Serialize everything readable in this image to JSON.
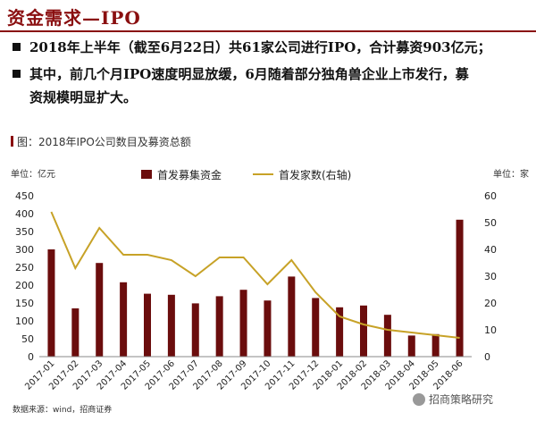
{
  "header": {
    "title": "资金需求—IPO"
  },
  "bullets": [
    "2018年上半年（截至6月22日）共61家公司进行IPO，合计募资903亿元；",
    "其中，前几个月IPO速度明显放缓，6月随着部分独角兽企业上市发行，募",
    "资规模明显扩大。"
  ],
  "chart_caption": "图：2018年IPO公司数目及募资总额",
  "source": "数据来源：wind，招商证券",
  "watermark": "招商策略研究",
  "chart_data": {
    "type": "bar+line",
    "left_unit_label": "单位：亿元",
    "right_unit_label": "单位：家",
    "categories": [
      "2017-01",
      "2017-02",
      "2017-03",
      "2017-04",
      "2017-05",
      "2017-06",
      "2017-07",
      "2017-08",
      "2017-09",
      "2017-10",
      "2017-11",
      "2017-12",
      "2018-01",
      "2018-02",
      "2018-03",
      "2018-04",
      "2018-05",
      "2018-06"
    ],
    "series": [
      {
        "name": "首发募集资金",
        "type": "bar",
        "axis": "left",
        "color": "#6b0d0d",
        "values": [
          300,
          135,
          262,
          208,
          176,
          173,
          149,
          169,
          187,
          157,
          224,
          164,
          138,
          143,
          117,
          59,
          63,
          383
        ]
      },
      {
        "name": "首发家数(右轴)",
        "type": "line",
        "axis": "right",
        "color": "#c7a227",
        "values": [
          54,
          33,
          48,
          38,
          38,
          36,
          30,
          37,
          37,
          27,
          36,
          24,
          15,
          12,
          10,
          9,
          8,
          7
        ]
      }
    ],
    "left_axis": {
      "min": 0,
      "max": 450,
      "step": 50
    },
    "right_axis": {
      "min": 0,
      "max": 60,
      "step": 10
    },
    "legend_position": "top-center",
    "grid": false
  }
}
